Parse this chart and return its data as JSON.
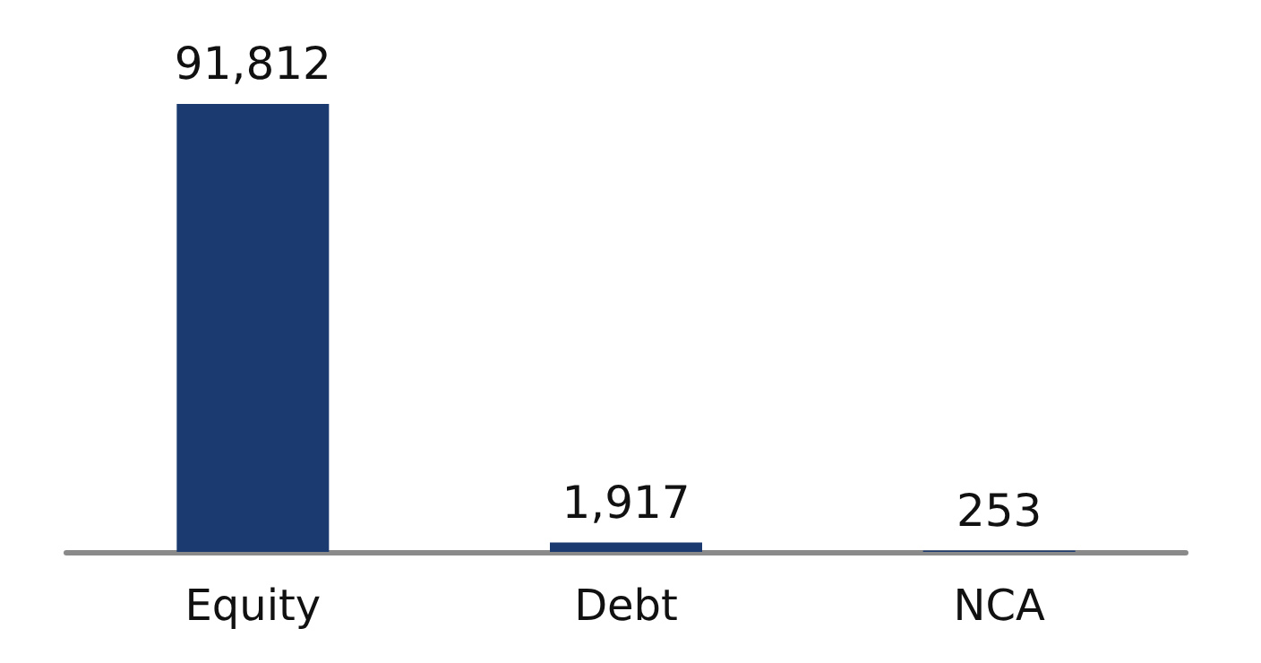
{
  "chart_data": {
    "type": "bar",
    "categories": [
      "Equity",
      "Debt",
      "NCA"
    ],
    "values": [
      91812,
      1917,
      253
    ],
    "value_labels": [
      "91,812",
      "1,917",
      "253"
    ],
    "color": "#1b3a6f"
  }
}
